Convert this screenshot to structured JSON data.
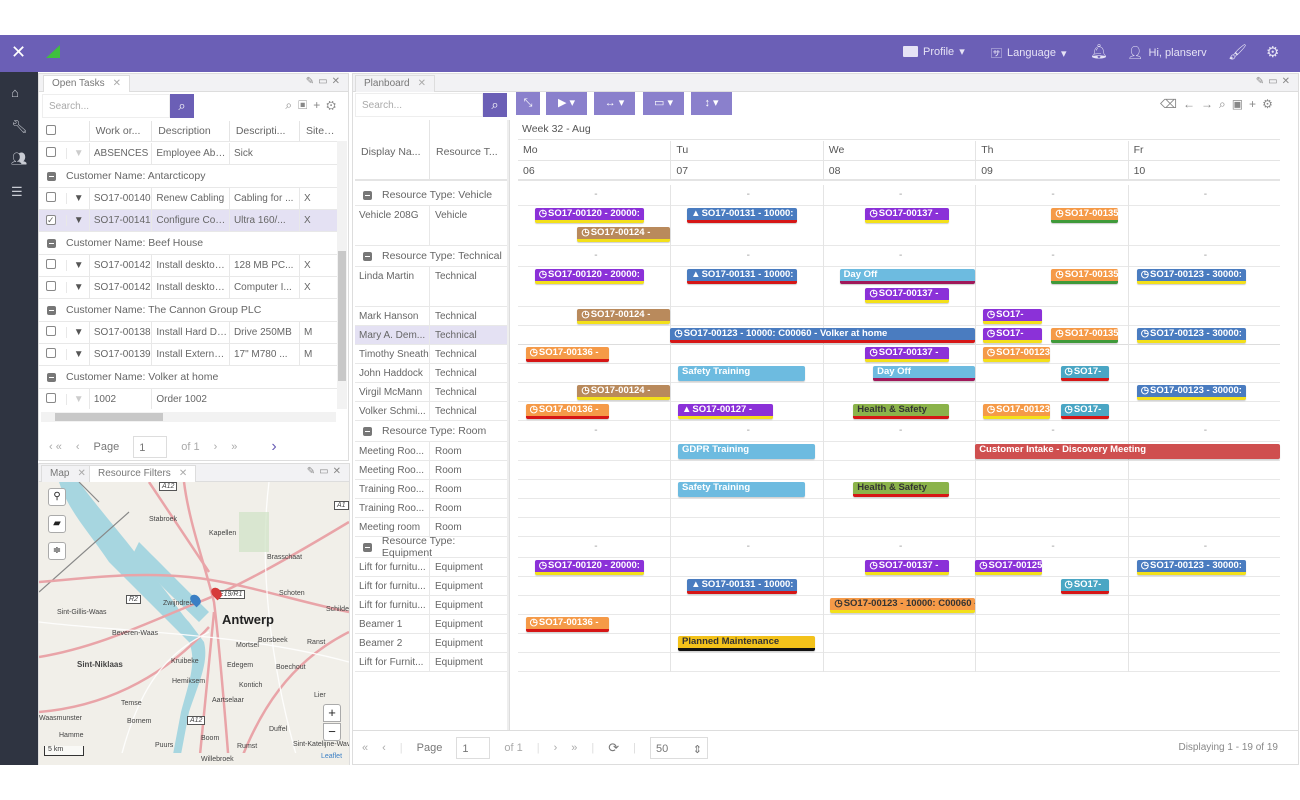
{
  "topbar": {
    "profile": "Profile",
    "language": "Language",
    "greeting": "Hi, planserv"
  },
  "open_tasks": {
    "tab": "Open Tasks",
    "search_placeholder": "Search...",
    "columns": [
      "Work or...",
      "Description",
      "Descripti...",
      "Site Re"
    ],
    "rows": [
      {
        "type": "row",
        "filter_dim": true,
        "cells": [
          "ABSENCES",
          "Employee Abse...",
          "Sick",
          ""
        ]
      },
      {
        "type": "group",
        "label": "Customer Name: Antarcticopy"
      },
      {
        "type": "row",
        "cells": [
          "SO17-00140",
          "Renew Cabling",
          "Cabling for ...",
          "X"
        ]
      },
      {
        "type": "row",
        "checked": true,
        "cells": [
          "SO17-00141",
          "Configure Contr...",
          "Ultra 160/...",
          "X"
        ]
      },
      {
        "type": "group",
        "label": "Customer Name: Beef House"
      },
      {
        "type": "row",
        "cells": [
          "SO17-00142",
          "Install desktop pc",
          "128 MB PC...",
          "X"
        ]
      },
      {
        "type": "row",
        "cells": [
          "SO17-00142",
          "Install desktop pc",
          "Computer I...",
          "X"
        ]
      },
      {
        "type": "group",
        "label": "Customer Name: The Cannon Group PLC"
      },
      {
        "type": "row",
        "cells": [
          "SO17-00138",
          "Install Hard Drive",
          "Drive 250MB",
          "M"
        ]
      },
      {
        "type": "row",
        "cells": [
          "SO17-00139",
          "Install External ...",
          "17\" M780 ...",
          "M"
        ]
      },
      {
        "type": "group",
        "label": "Customer Name: Volker at home"
      },
      {
        "type": "row",
        "filter_dim": true,
        "cells": [
          "1002",
          "Order 1002",
          "",
          ""
        ]
      }
    ],
    "pager": {
      "page_label": "Page",
      "page": "1",
      "of": "of 1"
    }
  },
  "map": {
    "tabs": [
      "Map",
      "Resource Filters"
    ],
    "labels": [
      "Stabroek",
      "Kapellen",
      "Brasschaat",
      "Schoten",
      "Schilde",
      "Sint-Gillis-Waas",
      "Zwijndrecht",
      "Antwerp",
      "Beveren-Waas",
      "Borsbeek",
      "Ranst",
      "Mortsel",
      "Sint-Niklaas",
      "Kruibeke",
      "Edegem",
      "Boechout",
      "Hemiksem",
      "Kontich",
      "Aartselaar",
      "Lier",
      "Temse",
      "Waasmunster",
      "Bornem",
      "Hamme",
      "Boom",
      "Duffel",
      "Puurs",
      "Rumst",
      "Sint-Katelijne-Waver",
      "Willebroek"
    ],
    "road_labels": [
      "A12",
      "R2",
      "E19/R1",
      "A12",
      "A1"
    ],
    "scale": "5 km",
    "attribution": "Leaflet",
    "zoom_in": "+",
    "zoom_out": "−"
  },
  "planboard": {
    "tab": "Planboard",
    "search_placeholder": "Search...",
    "columns": [
      "Display Na...",
      "Resource T..."
    ],
    "week": "Week 32 - Aug",
    "days": [
      {
        "name": "Mo",
        "date": "06"
      },
      {
        "name": "Tu",
        "date": "07"
      },
      {
        "name": "We",
        "date": "08"
      },
      {
        "name": "Th",
        "date": "09"
      },
      {
        "name": "Fr",
        "date": "10"
      }
    ],
    "group_marker": "-",
    "colors": {
      "purple": "#8b31d8",
      "blue": "#4a7cc0",
      "orange": "#f59a48",
      "brown": "#b98a5c",
      "lightblue": "#6dbbe0",
      "green": "#8bb34a",
      "red": "#cf4f4f",
      "teal": "#4aa6c4",
      "yellow": "#f3c21a",
      "ubar_yellow": "#f3e01a",
      "ubar_red": "#d61616",
      "ubar_green": "#3f9a3a",
      "ubar_maroon": "#a0185a",
      "ubar_black": "#111111"
    },
    "rows": [
      {
        "type": "group",
        "label": "Resource Type: Vehicle"
      },
      {
        "name": "Vehicle 208G",
        "rtype": "Vehicle",
        "lanes": 2,
        "events": [
          {
            "lane": 0,
            "start": 0.11,
            "end": 0.83,
            "label": "SO17-00120 - 20000:",
            "icon": "clock",
            "color": "purple",
            "bar": "ubar_yellow"
          },
          {
            "lane": 0,
            "start": 1.11,
            "end": 1.83,
            "label": "SO17-00131 - 10000:",
            "icon": "warning",
            "color": "blue",
            "bar": "ubar_red"
          },
          {
            "lane": 0,
            "start": 2.28,
            "end": 2.83,
            "label": "SO17-00137 -",
            "icon": "clock",
            "color": "purple",
            "bar": "ubar_yellow"
          },
          {
            "lane": 0,
            "start": 3.5,
            "end": 3.94,
            "label": "SO17-00135",
            "icon": "clock",
            "color": "orange",
            "bar": "ubar_green"
          },
          {
            "lane": 1,
            "start": 0.39,
            "end": 1.0,
            "label": "SO17-00124 -",
            "icon": "clock",
            "color": "brown",
            "bar": "ubar_yellow"
          }
        ]
      },
      {
        "type": "group",
        "label": "Resource Type: Technical"
      },
      {
        "name": "Linda Martin",
        "rtype": "Technical",
        "lanes": 2,
        "events": [
          {
            "lane": 0,
            "start": 0.11,
            "end": 0.83,
            "label": "SO17-00120 - 20000:",
            "icon": "clock",
            "color": "purple",
            "bar": "ubar_yellow"
          },
          {
            "lane": 0,
            "start": 1.11,
            "end": 1.83,
            "label": "SO17-00131 - 10000:",
            "icon": "warning",
            "color": "blue",
            "bar": "ubar_red"
          },
          {
            "lane": 0,
            "start": 2.11,
            "end": 3.0,
            "label": "Day Off",
            "color": "lightblue",
            "bar": "ubar_maroon"
          },
          {
            "lane": 0,
            "start": 3.5,
            "end": 3.94,
            "label": "SO17-00135",
            "icon": "clock",
            "color": "orange",
            "bar": "ubar_green"
          },
          {
            "lane": 0,
            "start": 4.06,
            "end": 4.78,
            "label": "SO17-00123 - 30000:",
            "icon": "clock",
            "color": "blue",
            "bar": "ubar_yellow"
          },
          {
            "lane": 1,
            "start": 2.28,
            "end": 2.83,
            "label": "SO17-00137 -",
            "icon": "clock",
            "color": "purple",
            "bar": "ubar_yellow"
          }
        ]
      },
      {
        "name": "Mark Hanson",
        "rtype": "Technical",
        "events": [
          {
            "start": 0.39,
            "end": 1.0,
            "label": "SO17-00124 -",
            "icon": "clock",
            "color": "brown",
            "bar": "ubar_yellow"
          },
          {
            "start": 3.05,
            "end": 3.44,
            "label": "SO17-",
            "icon": "clock",
            "color": "purple",
            "bar": "ubar_yellow"
          }
        ]
      },
      {
        "name": "Mary A. Dem...",
        "rtype": "Technical",
        "selected": true,
        "events": [
          {
            "start": 1.0,
            "end": 3.0,
            "label": "SO17-00123 - 10000: C00060 - Volker at home",
            "icon": "clock",
            "color": "blue",
            "bar": "ubar_red"
          },
          {
            "start": 3.05,
            "end": 3.44,
            "label": "SO17-",
            "icon": "clock",
            "color": "purple",
            "bar": "ubar_yellow"
          },
          {
            "start": 3.5,
            "end": 3.94,
            "label": "SO17-00135",
            "icon": "clock",
            "color": "orange",
            "bar": "ubar_green"
          },
          {
            "start": 4.06,
            "end": 4.78,
            "label": "SO17-00123 - 30000:",
            "icon": "clock",
            "color": "blue",
            "bar": "ubar_yellow"
          }
        ]
      },
      {
        "name": "Timothy Sneath",
        "rtype": "Technical",
        "events": [
          {
            "start": 0.05,
            "end": 0.6,
            "label": "SO17-00136 -",
            "icon": "clock",
            "color": "orange",
            "bar": "ubar_red"
          },
          {
            "start": 2.28,
            "end": 2.83,
            "label": "SO17-00137 -",
            "icon": "clock",
            "color": "purple",
            "bar": "ubar_yellow"
          },
          {
            "start": 3.05,
            "end": 3.49,
            "label": "SO17-00123",
            "icon": "clock",
            "color": "orange",
            "bar": "ubar_yellow"
          }
        ]
      },
      {
        "name": "John Haddock",
        "rtype": "Technical",
        "events": [
          {
            "start": 1.05,
            "end": 1.88,
            "label": "Safety Training",
            "color": "lightblue"
          },
          {
            "start": 2.33,
            "end": 3.0,
            "label": "Day Off",
            "color": "lightblue",
            "bar": "ubar_maroon"
          },
          {
            "start": 3.56,
            "end": 3.88,
            "label": "SO17-",
            "icon": "clock",
            "color": "teal",
            "bar": "ubar_red"
          }
        ]
      },
      {
        "name": "Virgil McMann",
        "rtype": "Technical",
        "events": [
          {
            "start": 0.39,
            "end": 1.0,
            "label": "SO17-00124 -",
            "icon": "clock",
            "color": "brown",
            "bar": "ubar_yellow"
          },
          {
            "start": 4.06,
            "end": 4.78,
            "label": "SO17-00123 - 30000:",
            "icon": "clock",
            "color": "blue",
            "bar": "ubar_yellow"
          }
        ]
      },
      {
        "name": "Volker Schmi...",
        "rtype": "Technical",
        "events": [
          {
            "start": 0.05,
            "end": 0.6,
            "label": "SO17-00136 -",
            "icon": "clock",
            "color": "orange",
            "bar": "ubar_red"
          },
          {
            "start": 1.05,
            "end": 1.67,
            "label": "SO17-00127 -",
            "icon": "warning",
            "color": "purple",
            "bar": "ubar_yellow"
          },
          {
            "start": 2.2,
            "end": 2.83,
            "label": "Health & Safety",
            "color": "green",
            "bar": "ubar_red",
            "dark": true
          },
          {
            "start": 3.05,
            "end": 3.49,
            "label": "SO17-00123",
            "icon": "clock",
            "color": "orange",
            "bar": "ubar_yellow"
          },
          {
            "start": 3.56,
            "end": 3.88,
            "label": "SO17-",
            "icon": "clock",
            "color": "teal",
            "bar": "ubar_red"
          }
        ]
      },
      {
        "type": "group",
        "label": "Resource Type: Room"
      },
      {
        "name": "Meeting Roo...",
        "rtype": "Room",
        "events": [
          {
            "start": 1.05,
            "end": 1.95,
            "label": "GDPR Training",
            "color": "lightblue"
          },
          {
            "start": 3.0,
            "end": 5.0,
            "label": "Customer Intake - Discovery Meeting",
            "color": "red"
          }
        ]
      },
      {
        "name": "Meeting Roo...",
        "rtype": "Room",
        "events": []
      },
      {
        "name": "Training Roo...",
        "rtype": "Room",
        "events": [
          {
            "start": 1.05,
            "end": 1.88,
            "label": "Safety Training",
            "color": "lightblue"
          },
          {
            "start": 2.2,
            "end": 2.83,
            "label": "Health & Safety",
            "color": "green",
            "bar": "ubar_red",
            "dark": true
          }
        ]
      },
      {
        "name": "Training Roo...",
        "rtype": "Room",
        "events": []
      },
      {
        "name": "Meeting room",
        "rtype": "Room",
        "events": []
      },
      {
        "type": "group",
        "label": "Resource Type: Equipment"
      },
      {
        "name": "Lift for furnitu...",
        "rtype": "Equipment",
        "events": [
          {
            "start": 0.11,
            "end": 0.83,
            "label": "SO17-00120 - 20000:",
            "icon": "clock",
            "color": "purple",
            "bar": "ubar_yellow"
          },
          {
            "start": 2.28,
            "end": 2.83,
            "label": "SO17-00137 -",
            "icon": "clock",
            "color": "purple",
            "bar": "ubar_yellow"
          },
          {
            "start": 3.0,
            "end": 3.44,
            "label": "SO17-00125",
            "icon": "clock",
            "color": "purple",
            "bar": "ubar_yellow"
          },
          {
            "start": 4.06,
            "end": 4.78,
            "label": "SO17-00123 - 30000:",
            "icon": "clock",
            "color": "blue",
            "bar": "ubar_yellow"
          }
        ]
      },
      {
        "name": "Lift for furnitu...",
        "rtype": "Equipment",
        "events": [
          {
            "start": 1.11,
            "end": 1.83,
            "label": "SO17-00131 - 10000:",
            "icon": "warning",
            "color": "blue",
            "bar": "ubar_red"
          },
          {
            "start": 3.56,
            "end": 3.88,
            "label": "SO17-",
            "icon": "clock",
            "color": "teal",
            "bar": "ubar_red"
          }
        ]
      },
      {
        "name": "Lift for furnitu...",
        "rtype": "Equipment",
        "events": [
          {
            "start": 2.05,
            "end": 3.0,
            "label": "SO17-00123 - 10000: C00060 -",
            "icon": "clock",
            "color": "orange",
            "bar": "ubar_yellow",
            "dark": true
          }
        ]
      },
      {
        "name": "Beamer 1",
        "rtype": "Equipment",
        "events": [
          {
            "start": 0.05,
            "end": 0.6,
            "label": "SO17-00136 -",
            "icon": "clock",
            "color": "orange",
            "bar": "ubar_red"
          }
        ]
      },
      {
        "name": "Beamer 2",
        "rtype": "Equipment",
        "events": [
          {
            "start": 1.05,
            "end": 1.95,
            "label": "Planned Maintenance",
            "color": "yellow",
            "bar": "ubar_black",
            "dark": true
          }
        ]
      },
      {
        "name": "Lift for Furnit...",
        "rtype": "Equipment",
        "events": []
      }
    ],
    "pager": {
      "page_label": "Page",
      "page": "1",
      "of": "of 1",
      "page_size": "50",
      "displaying": "Displaying 1 - 19 of 19"
    }
  }
}
